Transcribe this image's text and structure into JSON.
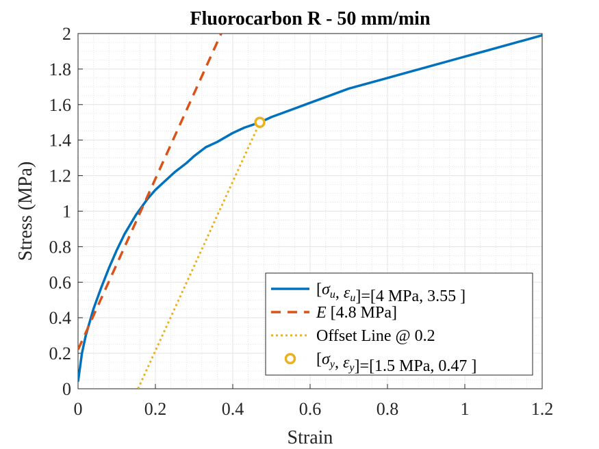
{
  "chart_data": {
    "type": "line",
    "title": "Fluorocarbon R - 50 mm/min",
    "xlabel": "Strain",
    "ylabel": "Stress (MPa)",
    "xlim": [
      0,
      1.2
    ],
    "ylim": [
      0,
      2
    ],
    "xticks": [
      "0",
      "0.2",
      "0.4",
      "0.6",
      "0.8",
      "1",
      "1.2"
    ],
    "yticks": [
      "0",
      "0.2",
      "0.4",
      "0.6",
      "0.8",
      "1",
      "1.2",
      "1.4",
      "1.6",
      "1.8",
      "2"
    ],
    "grid": true,
    "minor_grid": true,
    "legend_position": "bottom-right",
    "series": [
      {
        "name": "[σu,εu]=[4 MPa, 3.55 ]",
        "style": "solid",
        "color": "#0072BD",
        "x": [
          0,
          0.01,
          0.02,
          0.04,
          0.06,
          0.08,
          0.1,
          0.12,
          0.15,
          0.18,
          0.2,
          0.22,
          0.25,
          0.28,
          0.3,
          0.33,
          0.36,
          0.4,
          0.43,
          0.47,
          0.5,
          0.55,
          0.6,
          0.65,
          0.7,
          0.75,
          0.8,
          0.85,
          0.9,
          0.95,
          1.0,
          1.05,
          1.1,
          1.15,
          1.2
        ],
        "y": [
          0.04,
          0.2,
          0.3,
          0.45,
          0.57,
          0.68,
          0.78,
          0.87,
          0.98,
          1.07,
          1.12,
          1.16,
          1.22,
          1.27,
          1.31,
          1.36,
          1.39,
          1.44,
          1.47,
          1.5,
          1.53,
          1.57,
          1.61,
          1.65,
          1.69,
          1.72,
          1.75,
          1.78,
          1.81,
          1.84,
          1.87,
          1.9,
          1.93,
          1.96,
          1.99
        ]
      },
      {
        "name": "E [4.8 MPa]",
        "style": "dashed",
        "color": "#D95319",
        "x": [
          0,
          0.37
        ],
        "y": [
          0.22,
          2.0
        ]
      },
      {
        "name": "Offset Line @ 0.2",
        "style": "dotted",
        "color": "#EDB120",
        "x": [
          0.155,
          0.47
        ],
        "y": [
          0,
          1.5
        ]
      },
      {
        "name": "[σy,εy]=[1.5 MPa, 0.47 ]",
        "style": "marker",
        "color": "#EDB120",
        "x": [
          0.47
        ],
        "y": [
          1.5
        ]
      }
    ],
    "legend": [
      {
        "math": "[σu,εu]",
        "parts": [
          "[",
          "σ",
          "u",
          ", ",
          "ε",
          "u",
          "]"
        ],
        "text": "=[4 MPa, 3.55 ]"
      },
      {
        "math": "E",
        "text": " [4.8 MPa]"
      },
      {
        "math": "",
        "text": "Offset Line @ 0.2"
      },
      {
        "math": "[σy,εy]",
        "parts": [
          "[",
          "σ",
          "y",
          ", ",
          "ε",
          "y",
          "]"
        ],
        "text": "=[1.5 MPa, 0.47 ]"
      }
    ]
  }
}
